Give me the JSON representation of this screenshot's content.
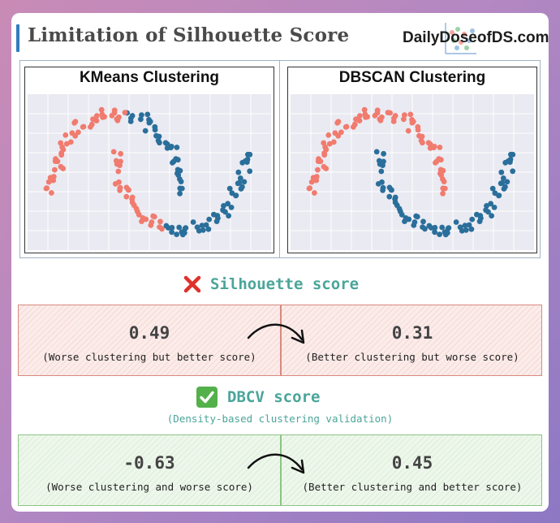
{
  "header": {
    "title": "Limitation of Silhouette Score",
    "brand": "DailyDoseofDS.com"
  },
  "panels": [
    {
      "title": "KMeans Clustering"
    },
    {
      "title": "DBSCAN Clustering"
    }
  ],
  "colors": {
    "cluster_a": "#f07b6e",
    "cluster_b": "#2a6f9b",
    "accent": "#4aa59a",
    "negative_border": "#d9897f",
    "positive_border": "#8cc485"
  },
  "silhouette": {
    "icon": "cross-mark-icon",
    "heading": "Silhouette score",
    "left": {
      "value": "0.49",
      "caption": "(Worse clustering but better score)"
    },
    "right": {
      "value": "0.31",
      "caption": "(Better clustering but worse score)"
    }
  },
  "dbcv": {
    "icon": "check-mark-icon",
    "heading": "DBCV score",
    "subheading": "(Density-based clustering validation)",
    "left": {
      "value": "-0.63",
      "caption": "(Worse clustering and worse score)"
    },
    "right": {
      "value": "0.45",
      "caption": "(Better clustering and better score)"
    }
  },
  "chart_data": [
    {
      "type": "scatter",
      "title": "KMeans Clustering",
      "grid": true,
      "xlim": [
        -1.3,
        2.3
      ],
      "ylim": [
        -0.7,
        1.2
      ],
      "series": [
        {
          "cluster": "A",
          "color": "#f07b6e",
          "shape": "upper moon plus left part of lower moon"
        },
        {
          "cluster": "B",
          "color": "#2a6f9b",
          "shape": "right part of lower moon plus right tip of upper moon"
        }
      ]
    },
    {
      "type": "scatter",
      "title": "DBSCAN Clustering",
      "grid": true,
      "xlim": [
        -1.3,
        2.3
      ],
      "ylim": [
        -0.7,
        1.2
      ],
      "series": [
        {
          "cluster": "A",
          "color": "#f07b6e",
          "shape": "upper moon"
        },
        {
          "cluster": "B",
          "color": "#2a6f9b",
          "shape": "lower moon"
        }
      ]
    }
  ]
}
